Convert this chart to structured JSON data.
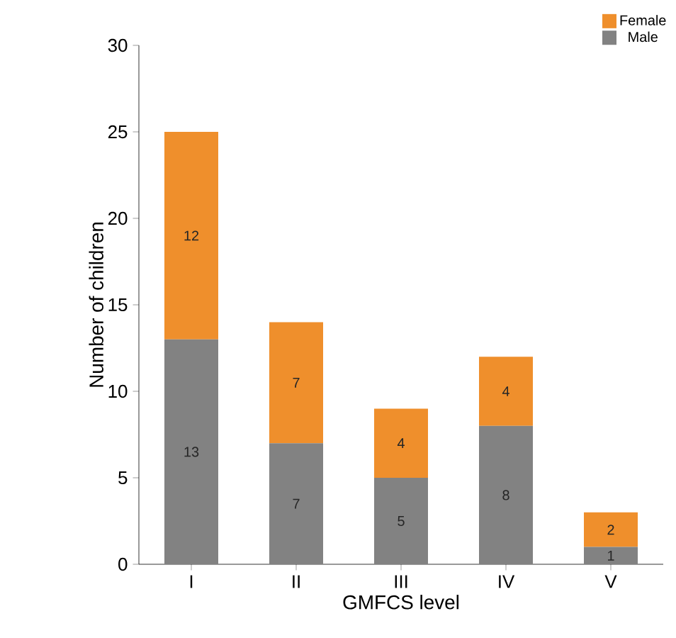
{
  "chart_data": {
    "type": "bar",
    "stacked": true,
    "xlabel": "GMFCS level",
    "ylabel": "Number of children",
    "categories": [
      "I",
      "II",
      "III",
      "IV",
      "V"
    ],
    "series": [
      {
        "name": "Male",
        "color": "#828282",
        "values": [
          13,
          7,
          5,
          8,
          1
        ]
      },
      {
        "name": "Female",
        "color": "#ef8f2c",
        "values": [
          12,
          7,
          4,
          4,
          2
        ]
      }
    ],
    "ylim": [
      0,
      30
    ],
    "yticks": [
      0,
      5,
      10,
      15,
      20,
      25,
      30
    ],
    "grid": false,
    "legend": "top right",
    "data_labels": true
  }
}
